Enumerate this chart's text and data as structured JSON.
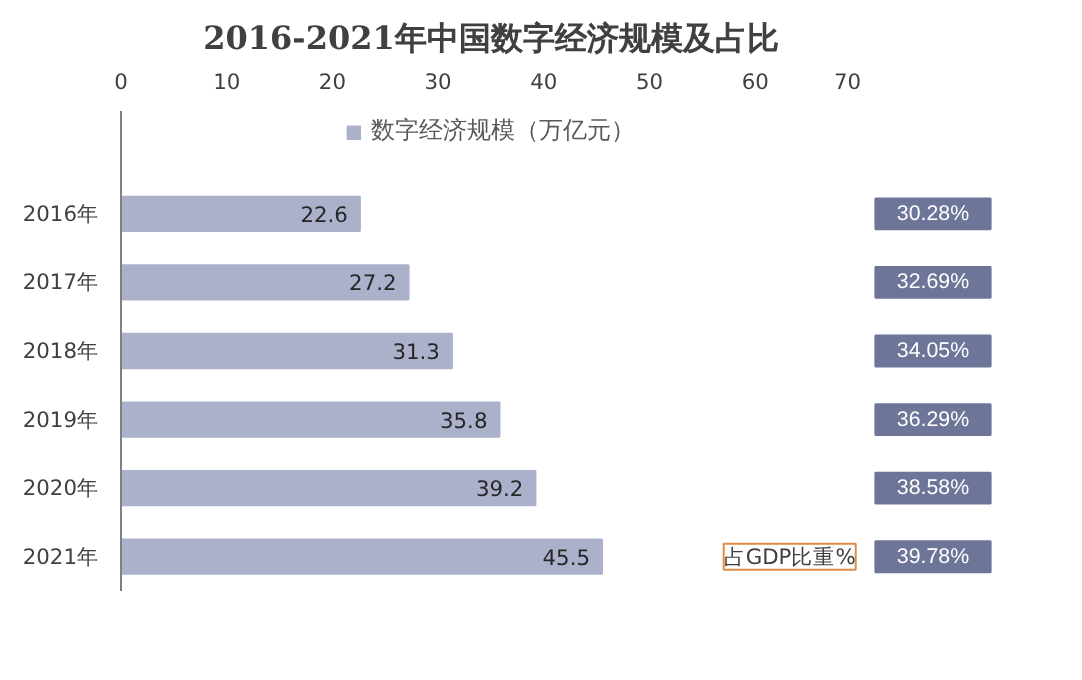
{
  "chart_data": {
    "type": "bar",
    "orientation": "horizontal",
    "title": "2016-2021年中国数字经济规模及占比",
    "categories": [
      "2016年",
      "2017年",
      "2018年",
      "2019年",
      "2020年",
      "2021年"
    ],
    "series": [
      {
        "name": "数字经济规模（万亿元）",
        "color": "#abb1cb",
        "values": [
          22.6,
          27.2,
          31.3,
          35.8,
          39.2,
          45.5
        ]
      }
    ],
    "data_labels": true,
    "xlim": [
      0,
      70
    ],
    "xticks": [
      0,
      10,
      20,
      30,
      40,
      50,
      60,
      70
    ],
    "grid": false,
    "legend": "top",
    "annotations": [
      "30.28%",
      "32.69%",
      "34.05%",
      "36.29%",
      "38.58%",
      "39.78%",
      "占GDP比重%"
    ]
  }
}
